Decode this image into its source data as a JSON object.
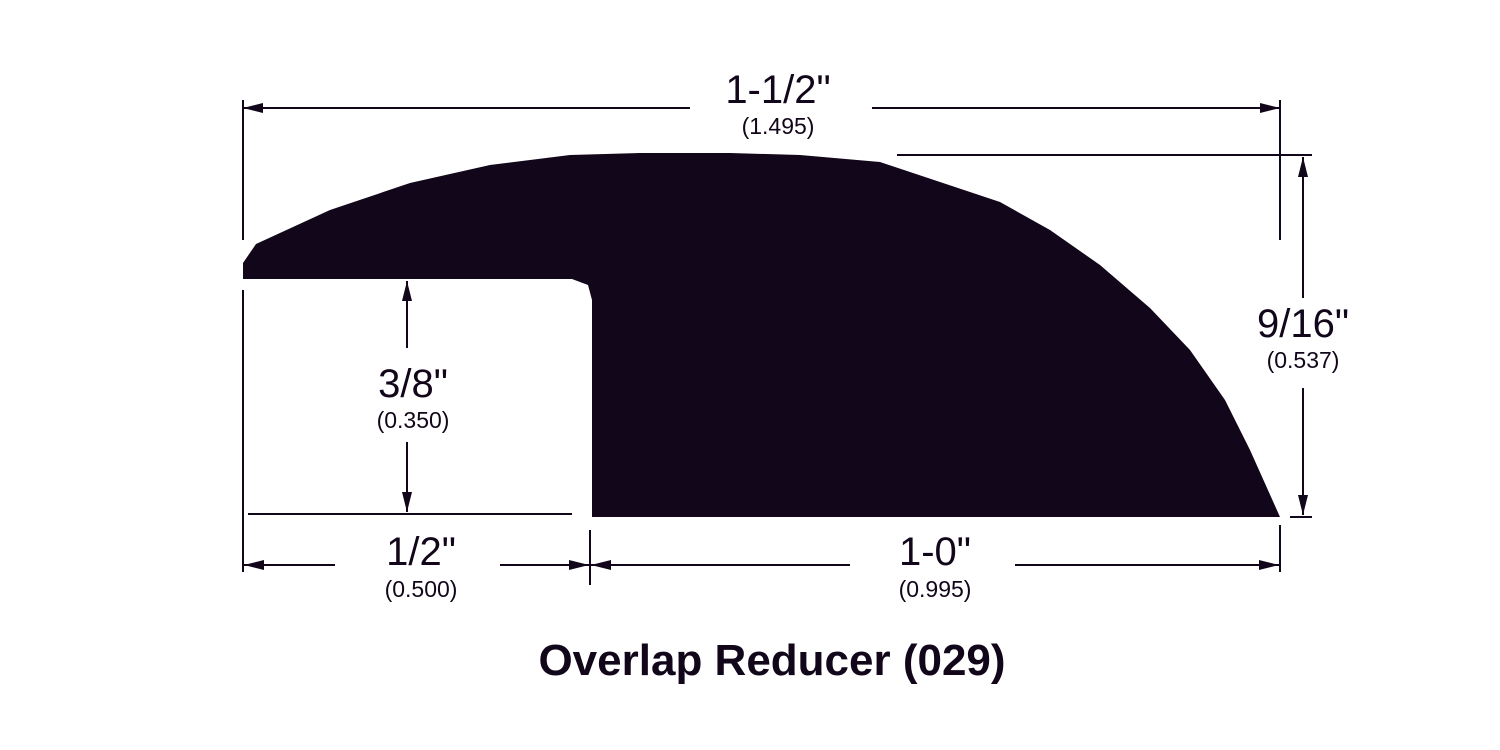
{
  "title": "Overlap Reducer (029)",
  "colors": {
    "profile_fill": "#12061a",
    "line": "#12061a",
    "background": "#ffffff"
  },
  "dimensions": {
    "overall_width": {
      "fraction": "1-1/2\"",
      "decimal": "(1.495)"
    },
    "overall_height": {
      "fraction": "9/16\"",
      "decimal": "(0.537)"
    },
    "overlap_height": {
      "fraction": "3/8\"",
      "decimal": "(0.350)"
    },
    "overlap_width": {
      "fraction": "1/2\"",
      "decimal": "(0.500)"
    },
    "base_width": {
      "fraction": "1-0\"",
      "decimal": "(0.995)"
    }
  }
}
